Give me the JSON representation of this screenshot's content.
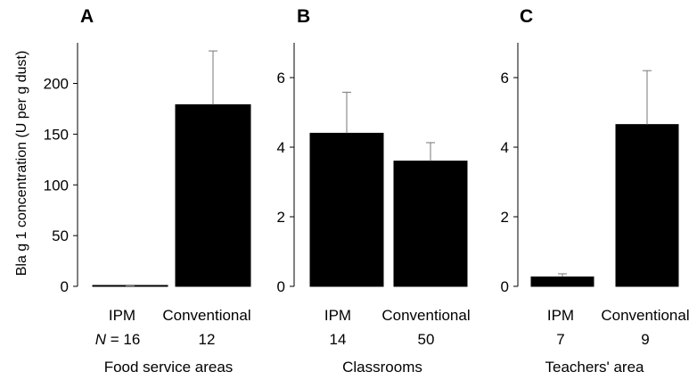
{
  "ylabel": "Bla g 1 concentration (U per g dust)",
  "n_prefix": "N =",
  "chart_data": [
    {
      "type": "bar",
      "panel": "A",
      "xlabel": "Food service areas",
      "categories": [
        "IPM",
        "Conventional"
      ],
      "n": [
        "16",
        "12"
      ],
      "values": [
        0.3,
        179
      ],
      "error_upper": [
        0.5,
        232
      ],
      "ylim": [
        0,
        240
      ],
      "yticks": [
        0,
        50,
        100,
        150,
        200
      ],
      "grid": false,
      "bar_color": "#000000"
    },
    {
      "type": "bar",
      "panel": "B",
      "xlabel": "Classrooms",
      "categories": [
        "IPM",
        "Conventional"
      ],
      "n": [
        "14",
        "50"
      ],
      "values": [
        4.4,
        3.6
      ],
      "error_upper": [
        5.58,
        4.13
      ],
      "ylim": [
        0,
        7
      ],
      "yticks": [
        0,
        2,
        4,
        6
      ],
      "grid": false,
      "bar_color": "#000000"
    },
    {
      "type": "bar",
      "panel": "C",
      "xlabel": "Teachers' area",
      "categories": [
        "IPM",
        "Conventional"
      ],
      "n": [
        "7",
        "9"
      ],
      "values": [
        0.27,
        4.65
      ],
      "error_upper": [
        0.36,
        6.2
      ],
      "ylim": [
        0,
        7
      ],
      "yticks": [
        0,
        2,
        4,
        6
      ],
      "grid": false,
      "bar_color": "#000000"
    }
  ]
}
